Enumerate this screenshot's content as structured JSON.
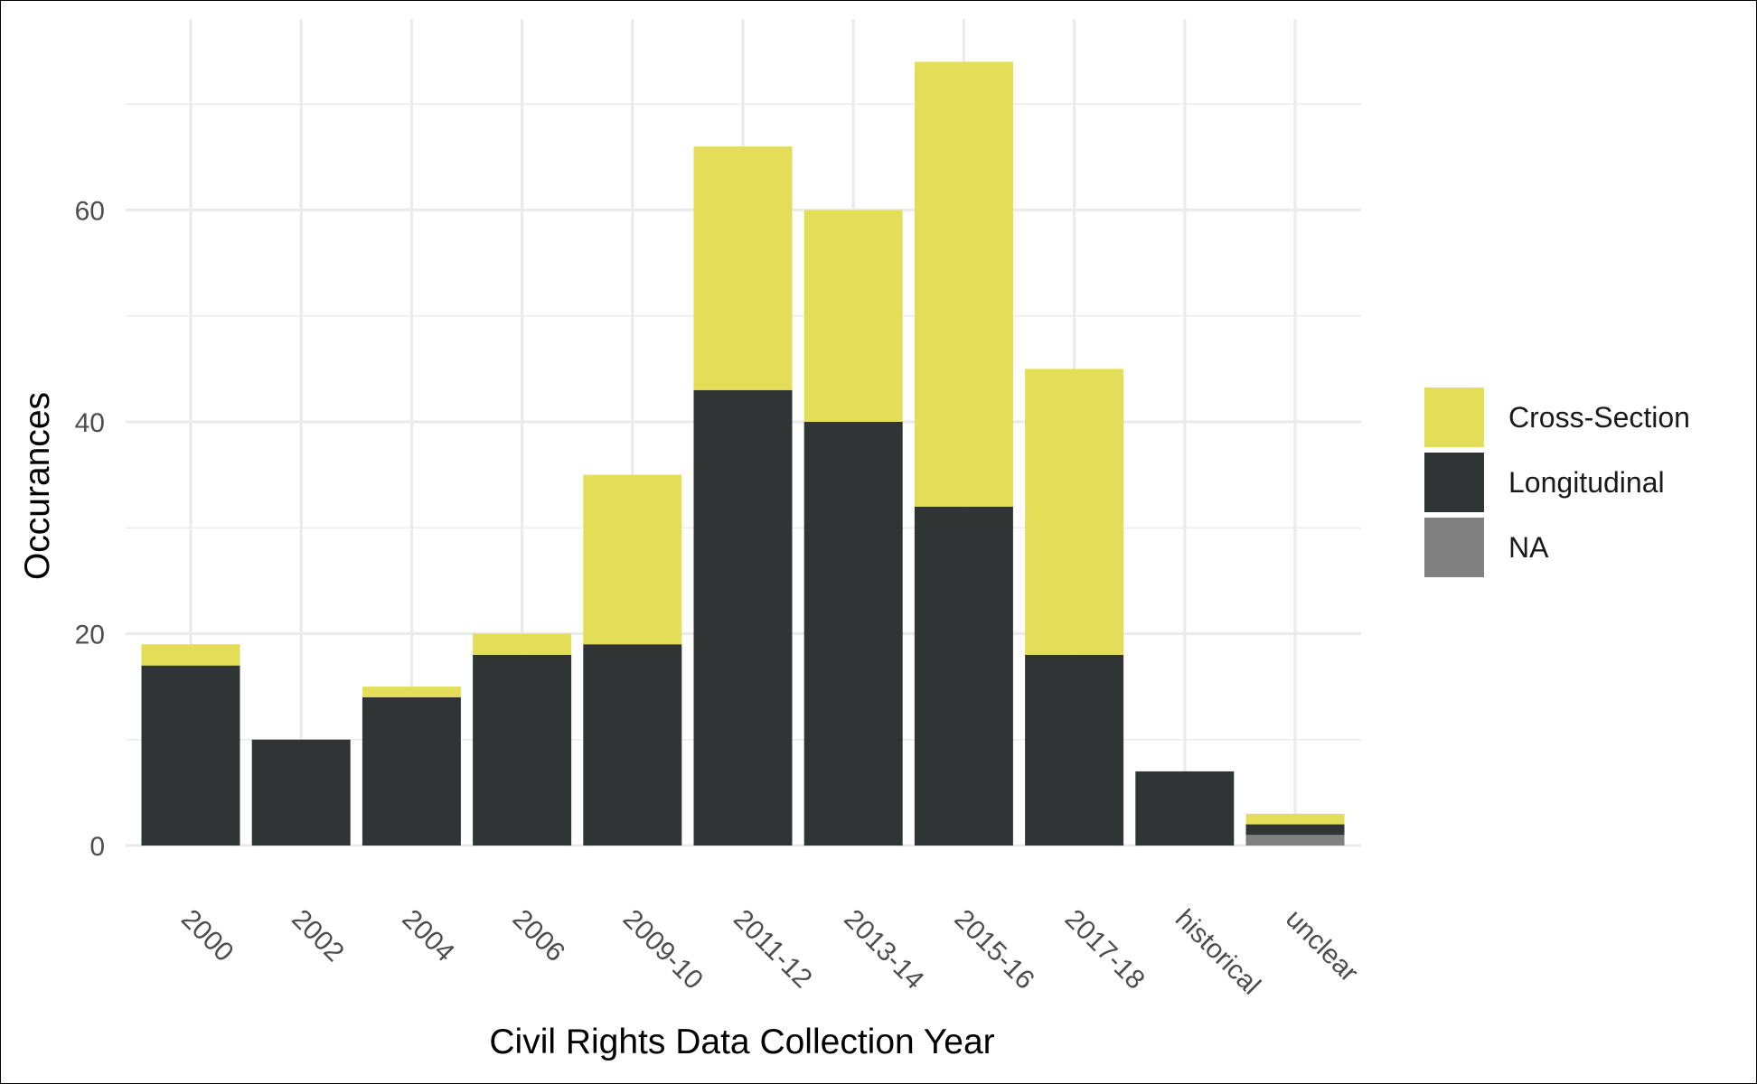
{
  "chart_data": {
    "type": "bar",
    "stacked": true,
    "xlabel": "Civil Rights Data Collection Year",
    "ylabel": "Occurances",
    "categories": [
      "2000",
      "2002",
      "2004",
      "2006",
      "2009-10",
      "2011-12",
      "2013-14",
      "2015-16",
      "2017-18",
      "historical",
      "unclear"
    ],
    "series": [
      {
        "name": "NA",
        "color": "#808080",
        "values": [
          0,
          0,
          0,
          0,
          0,
          0,
          0,
          0,
          0,
          0,
          1
        ]
      },
      {
        "name": "Longitudinal",
        "color": "#313435",
        "values": [
          17,
          10,
          14,
          18,
          19,
          43,
          40,
          32,
          18,
          7,
          1
        ]
      },
      {
        "name": "Cross-Section",
        "color": "#e3dd57",
        "values": [
          2,
          0,
          1,
          2,
          16,
          23,
          20,
          42,
          27,
          0,
          1
        ]
      }
    ],
    "legend_order": [
      "Cross-Section",
      "Longitudinal",
      "NA"
    ],
    "ylim": [
      0,
      75
    ],
    "yticks": [
      0,
      20,
      40,
      60
    ],
    "y_minor_ticks": [
      10,
      30,
      50,
      70
    ],
    "grid": true,
    "legend_position": "right"
  }
}
